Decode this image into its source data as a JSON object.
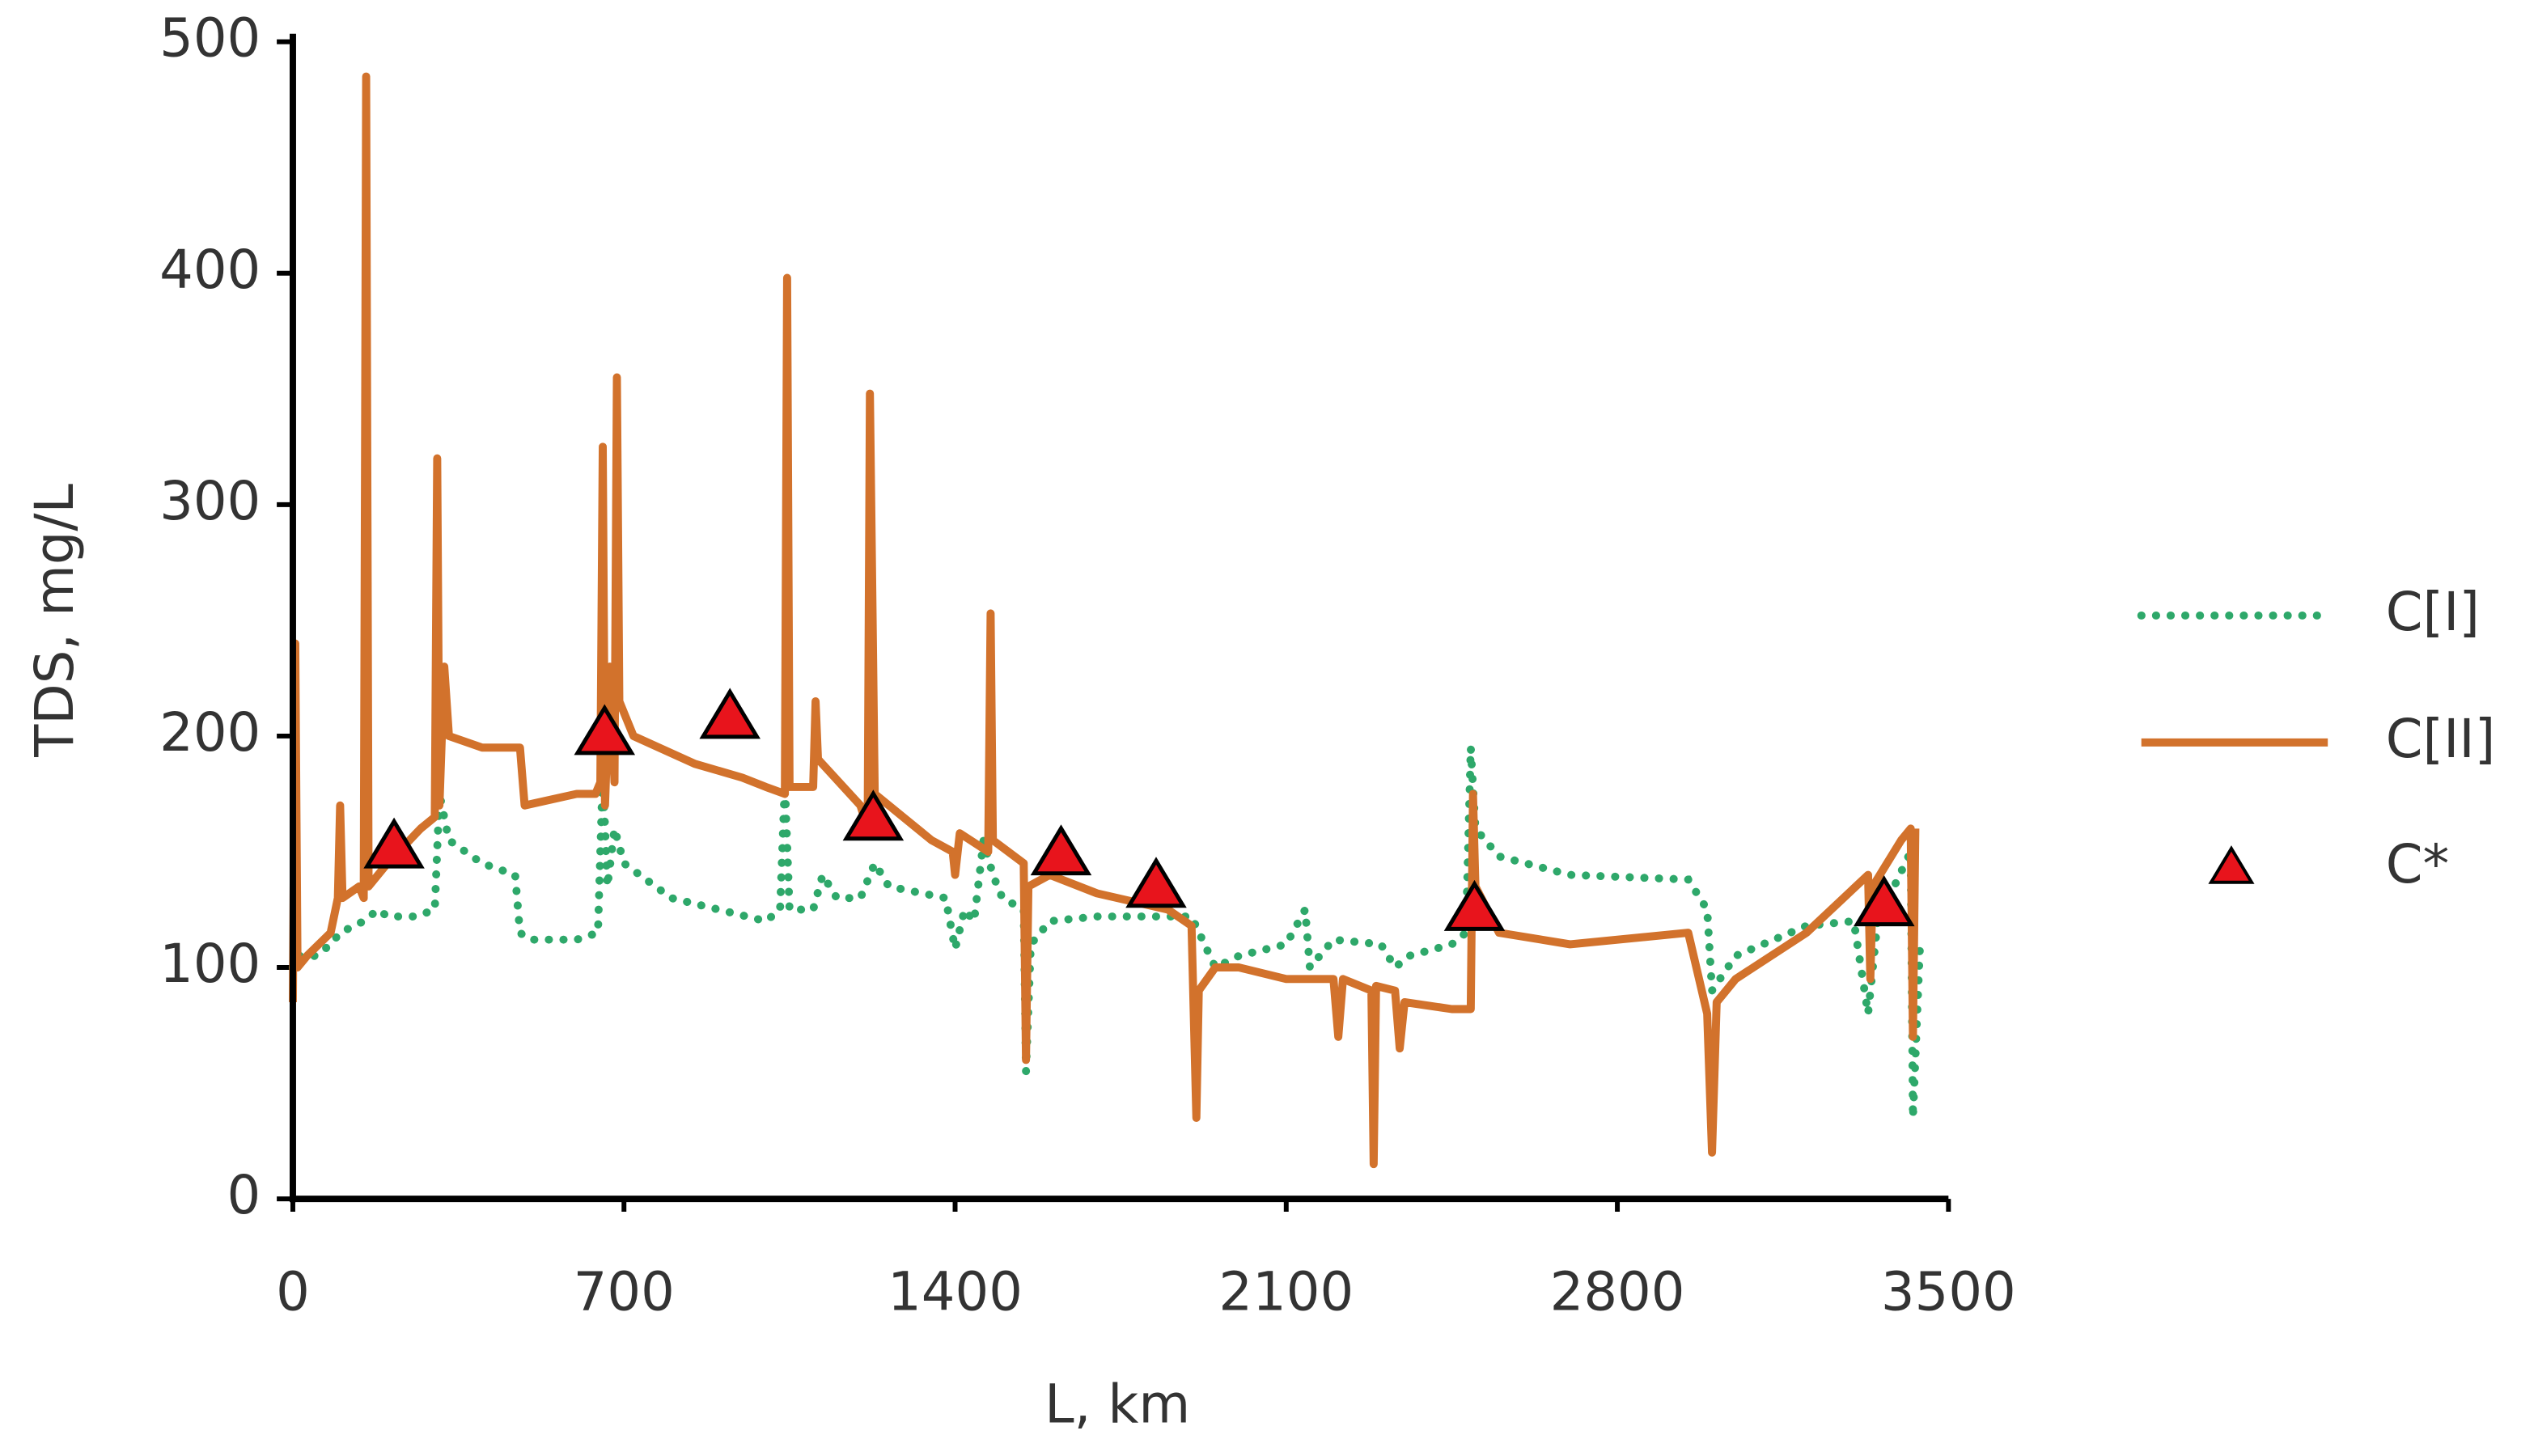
{
  "chart_data": {
    "type": "line",
    "x_label": "L, km",
    "y_label": "TDS, mg/L",
    "xlim": [
      0,
      3500
    ],
    "xticks": [
      0,
      700,
      1400,
      2100,
      2800,
      3500
    ],
    "ylim": [
      0,
      500
    ],
    "yticks": [
      0,
      100,
      200,
      300,
      400,
      500
    ],
    "series": [
      {
        "name": "C[I]",
        "color": "#2ea86a",
        "style": "dotted",
        "x": [
          0,
          10,
          50,
          80,
          100,
          150,
          180,
          200,
          260,
          300,
          310,
          330,
          400,
          470,
          480,
          500,
          600,
          645,
          655,
          665,
          680,
          700,
          800,
          900,
          1000,
          1030,
          1040,
          1050,
          1100,
          1120,
          1150,
          1200,
          1230,
          1260,
          1380,
          1400,
          1420,
          1440,
          1460,
          1480,
          1500,
          1545,
          1550,
          1560,
          1600,
          1700,
          1900,
          1950,
          2000,
          2100,
          2140,
          2150,
          2200,
          2300,
          2330,
          2360,
          2450,
          2480,
          2490,
          2500,
          2550,
          2700,
          2950,
          2990,
          3000,
          3050,
          3200,
          3300,
          3330,
          3350,
          3420,
          3425,
          3440
        ],
        "values": [
          100,
          105,
          105,
          110,
          115,
          120,
          125,
          122,
          122,
          125,
          175,
          155,
          145,
          140,
          115,
          112,
          112,
          115,
          185,
          135,
          160,
          145,
          130,
          125,
          120,
          125,
          180,
          125,
          125,
          140,
          130,
          130,
          145,
          135,
          130,
          108,
          125,
          120,
          155,
          140,
          130,
          125,
          55,
          110,
          120,
          122,
          122,
          100,
          105,
          110,
          125,
          100,
          112,
          110,
          100,
          105,
          110,
          115,
          195,
          160,
          148,
          140,
          138,
          125,
          90,
          105,
          118,
          120,
          80,
          120,
          150,
          35,
          110
        ]
      },
      {
        "name": "C[II]",
        "color": "#d2722c",
        "style": "solid",
        "x": [
          0,
          5,
          10,
          30,
          80,
          95,
          100,
          105,
          140,
          150,
          155,
          160,
          200,
          270,
          300,
          305,
          310,
          320,
          330,
          400,
          480,
          490,
          600,
          640,
          650,
          655,
          660,
          670,
          680,
          685,
          690,
          720,
          850,
          950,
          1000,
          1040,
          1045,
          1050,
          1100,
          1105,
          1110,
          1200,
          1215,
          1220,
          1230,
          1350,
          1395,
          1400,
          1410,
          1470,
          1475,
          1480,
          1545,
          1550,
          1555,
          1600,
          1700,
          1850,
          1900,
          1910,
          1915,
          1950,
          2000,
          2100,
          2200,
          2210,
          2220,
          2280,
          2285,
          2290,
          2330,
          2340,
          2350,
          2450,
          2490,
          2495,
          2500,
          2550,
          2700,
          2950,
          2990,
          3000,
          3010,
          3050,
          3200,
          3330,
          3335,
          3340,
          3400,
          3420,
          3425,
          3430
        ],
        "values": [
          85,
          240,
          100,
          105,
          115,
          130,
          170,
          130,
          135,
          130,
          485,
          135,
          145,
          160,
          165,
          320,
          170,
          230,
          200,
          195,
          195,
          170,
          175,
          175,
          180,
          325,
          170,
          230,
          180,
          355,
          215,
          200,
          188,
          182,
          178,
          175,
          398,
          178,
          178,
          215,
          190,
          170,
          160,
          348,
          175,
          155,
          150,
          140,
          158,
          150,
          253,
          155,
          145,
          60,
          135,
          140,
          132,
          125,
          118,
          35,
          90,
          100,
          100,
          95,
          95,
          70,
          95,
          90,
          15,
          92,
          90,
          65,
          85,
          82,
          82,
          175,
          135,
          115,
          110,
          115,
          80,
          20,
          85,
          95,
          115,
          140,
          95,
          135,
          155,
          160,
          70,
          160
        ]
      },
      {
        "name": "C*",
        "color": "#e8141c",
        "style": "marker",
        "x": [
          214,
          659,
          924,
          1227,
          1624,
          1825,
          2498,
          3364
        ],
        "values": [
          152,
          201,
          208,
          164,
          149,
          135,
          125,
          127
        ]
      }
    ]
  }
}
